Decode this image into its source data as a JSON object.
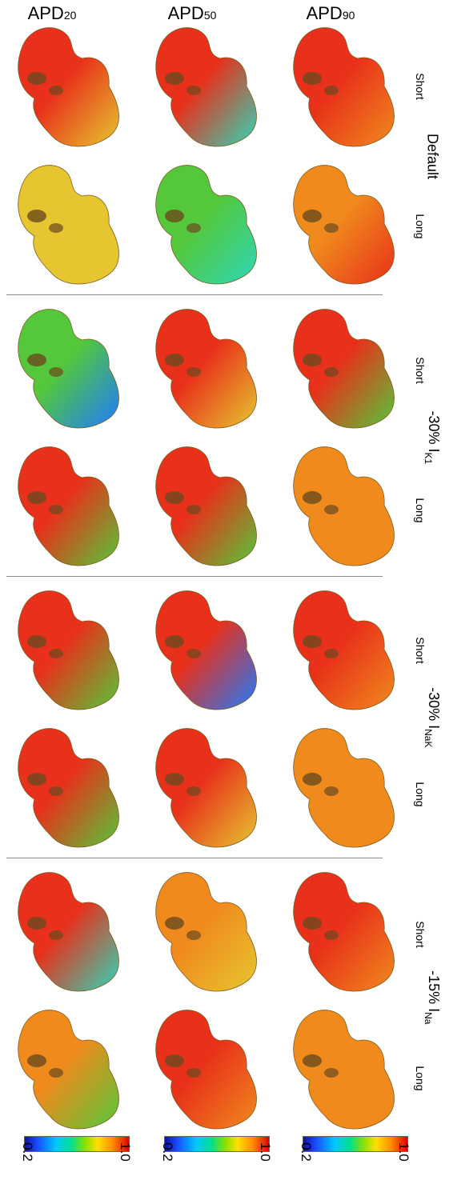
{
  "columns": [
    {
      "main": "APD",
      "sub": "20"
    },
    {
      "main": "APD",
      "sub": "50"
    },
    {
      "main": "APD",
      "sub": "90"
    }
  ],
  "groups": [
    {
      "main": "Default",
      "sub": ""
    },
    {
      "main": "-30% I",
      "sub": "K1"
    },
    {
      "main": "-30% I",
      "sub": "NaK"
    },
    {
      "main": "-15% I",
      "sub": "Na"
    }
  ],
  "rows": [
    "Short",
    "Long"
  ],
  "colorbar": {
    "min": "0.2",
    "max": "1.0"
  },
  "colors": {
    "red": "#e8301a",
    "orange": "#f08a1c",
    "yellow": "#e6c630",
    "green": "#54c83a",
    "cyan": "#2fd6b8",
    "blue": "#1e7bff"
  },
  "maps": [
    [
      "red-yellow",
      "yellow",
      "red-cyan",
      "green-cyan",
      "red-orange",
      "orange-red"
    ],
    [
      "green-blue",
      "red-green",
      "red-yellow",
      "red-green",
      "red-green",
      "orange"
    ],
    [
      "red-green",
      "red-green",
      "red-blue",
      "red-yellow",
      "red-orange",
      "orange"
    ],
    [
      "red-cyan",
      "orange-green",
      "orange-yellow",
      "red-orange",
      "red-orange",
      "orange"
    ]
  ]
}
